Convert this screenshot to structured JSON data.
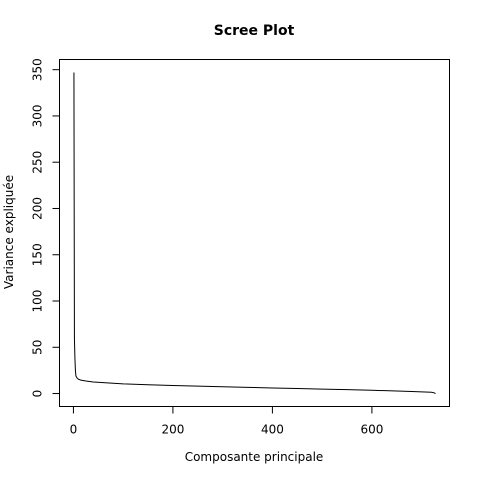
{
  "chart_data": {
    "type": "line",
    "title": "Scree Plot",
    "xlabel": "Composante principale",
    "ylabel": "Variance expliquée",
    "xlim": [
      -28,
      756
    ],
    "ylim": [
      -14,
      361
    ],
    "xticks": [
      0,
      200,
      400,
      600
    ],
    "yticks": [
      0,
      50,
      100,
      150,
      200,
      250,
      300,
      350
    ],
    "grid": false,
    "series": [
      {
        "color": "#000000",
        "points": [
          [
            1,
            347
          ],
          [
            2,
            60
          ],
          [
            3,
            38
          ],
          [
            4,
            25
          ],
          [
            5,
            19
          ],
          [
            7,
            17
          ],
          [
            10,
            15.5
          ],
          [
            15,
            14.5
          ],
          [
            25,
            13.5
          ],
          [
            40,
            12.5
          ],
          [
            60,
            11.8
          ],
          [
            100,
            10.5
          ],
          [
            150,
            9.5
          ],
          [
            200,
            8.7
          ],
          [
            250,
            8
          ],
          [
            300,
            7.3
          ],
          [
            350,
            6.7
          ],
          [
            400,
            6
          ],
          [
            450,
            5.4
          ],
          [
            500,
            4.8
          ],
          [
            550,
            4.2
          ],
          [
            600,
            3.5
          ],
          [
            650,
            2.8
          ],
          [
            680,
            2.2
          ],
          [
            700,
            1.8
          ],
          [
            720,
            1.4
          ],
          [
            725,
            0.8
          ],
          [
            728,
            0
          ]
        ]
      }
    ]
  }
}
